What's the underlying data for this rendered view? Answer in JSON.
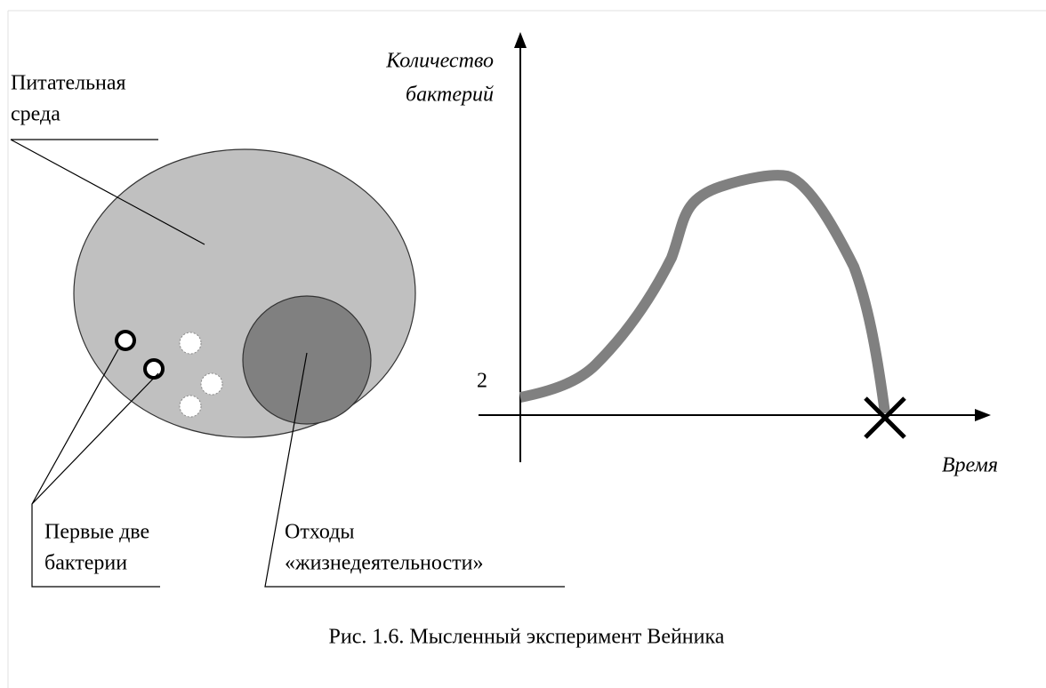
{
  "medium_label": [
    "Питательная",
    "среда"
  ],
  "bacteria_label": [
    "Первые две",
    "бактерии"
  ],
  "waste_label": [
    "Отходы",
    "«жизнедеятельности»"
  ],
  "graph": {
    "y_axis_label": [
      "Количество",
      "бактерий"
    ],
    "x_axis_label": "Время",
    "start_value": 2
  },
  "caption": "Рис. 1.6. Мысленный эксперимент Вейника"
}
